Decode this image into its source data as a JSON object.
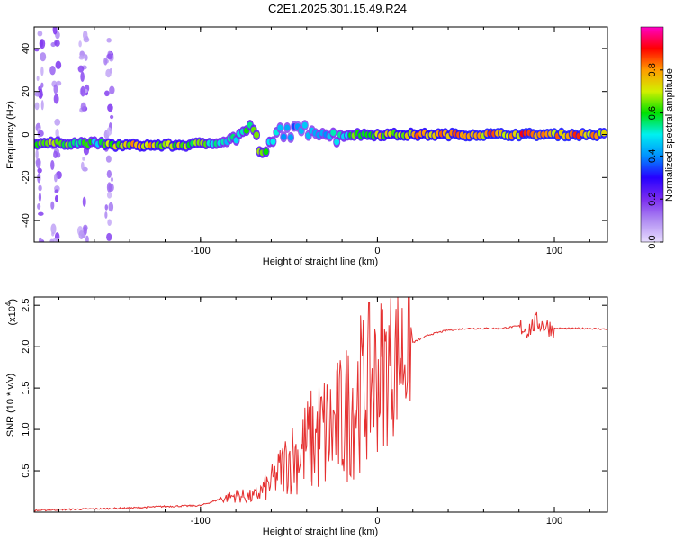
{
  "title": "C2E1.2025.301.15.49.R24",
  "chart_data": [
    {
      "type": "heatmap",
      "xlabel": "Height of straight line (km)",
      "ylabel": "Frequency (Hz)",
      "xlim": [
        -194,
        130
      ],
      "ylim": [
        -50,
        50
      ],
      "x_ticks": [
        -100,
        0,
        100
      ],
      "y_ticks": [
        -40,
        -20,
        0,
        20,
        40
      ],
      "colorbar": {
        "label": "Normalized spectral amplitude",
        "range": [
          0,
          1
        ],
        "ticks": [
          "0.0",
          "0.2",
          "0.4",
          "0.6",
          "0.8"
        ],
        "colormap": [
          "#e8ddff",
          "#b08cf2",
          "#7a2cf0",
          "#2600ff",
          "#0090ff",
          "#00f0f0",
          "#00e000",
          "#d2f000",
          "#ff9c00",
          "#ff0000",
          "#ff00c8"
        ]
      },
      "ridge": [
        {
          "x": -194,
          "y": -4,
          "amp": 0.72
        },
        {
          "x": -175,
          "y": -4,
          "amp": 0.7
        },
        {
          "x": -158,
          "y": -4,
          "amp": 0.62
        },
        {
          "x": -150,
          "y": -5,
          "amp": 0.8
        },
        {
          "x": -130,
          "y": -5,
          "amp": 0.82
        },
        {
          "x": -110,
          "y": -5,
          "amp": 0.78
        },
        {
          "x": -95,
          "y": -4,
          "amp": 0.68
        },
        {
          "x": -85,
          "y": -3,
          "amp": 0.55
        },
        {
          "x": -78,
          "y": 0,
          "amp": 0.6
        },
        {
          "x": -70,
          "y": 3,
          "amp": 0.65
        },
        {
          "x": -65,
          "y": -11,
          "amp": 0.7
        },
        {
          "x": -55,
          "y": 2,
          "amp": 0.5
        },
        {
          "x": -45,
          "y": 1,
          "amp": 0.45
        },
        {
          "x": -35,
          "y": 3,
          "amp": 0.5
        },
        {
          "x": -25,
          "y": -1,
          "amp": 0.55
        },
        {
          "x": -15,
          "y": 0,
          "amp": 0.65
        },
        {
          "x": 0,
          "y": 0,
          "amp": 0.78
        },
        {
          "x": 15,
          "y": 0,
          "amp": 0.85
        },
        {
          "x": 50,
          "y": 0,
          "amp": 0.9
        },
        {
          "x": 100,
          "y": 0,
          "amp": 0.92
        },
        {
          "x": 130,
          "y": 0,
          "amp": 0.9
        }
      ]
    },
    {
      "type": "line",
      "xlabel": "Height of straight line (km)",
      "ylabel": "SNR (10 * v/v)",
      "y_multiplier": "(x10",
      "y_multiplier_exp": "4",
      "xlim": [
        -194,
        130
      ],
      "ylim": [
        0,
        2.6
      ],
      "x_ticks": [
        -100,
        0,
        100
      ],
      "y_ticks": [
        0.5,
        1.0,
        1.5,
        2.0,
        2.5
      ],
      "series": [
        {
          "color": "#e53030",
          "x": [
            -194,
            -180,
            -160,
            -140,
            -120,
            -100,
            -90,
            -80,
            -70,
            -60,
            -55,
            -50,
            -45,
            -40,
            -35,
            -30,
            -25,
            -20,
            -15,
            -10,
            -5,
            0,
            5,
            10,
            15,
            20,
            25,
            30,
            40,
            50,
            60,
            70,
            80,
            85,
            90,
            95,
            100,
            110,
            120,
            130
          ],
          "y": [
            0.02,
            0.03,
            0.04,
            0.05,
            0.07,
            0.08,
            0.15,
            0.2,
            0.18,
            0.35,
            0.5,
            0.65,
            0.7,
            0.8,
            0.9,
            0.95,
            1.0,
            1.1,
            1.3,
            1.45,
            1.55,
            1.65,
            1.75,
            1.85,
            1.95,
            2.05,
            2.1,
            2.15,
            2.2,
            2.22,
            2.22,
            2.22,
            2.25,
            2.2,
            2.3,
            2.25,
            2.22,
            2.22,
            2.22,
            2.21
          ]
        }
      ]
    }
  ]
}
